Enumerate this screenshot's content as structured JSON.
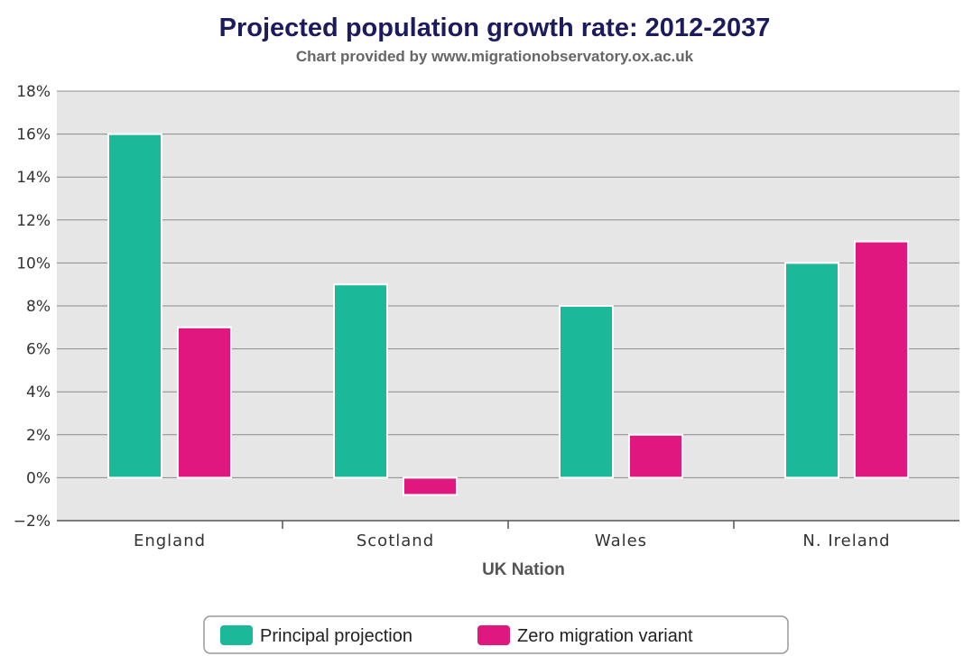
{
  "chart_data": {
    "type": "bar",
    "title": "Projected population growth rate: 2012-2037",
    "subtitle": "Chart provided by www.migrationobservatory.ox.ac.uk",
    "xlabel": "UK Nation",
    "ylabel": "",
    "categories": [
      "England",
      "Scotland",
      "Wales",
      "N. Ireland"
    ],
    "series": [
      {
        "name": "Principal projection",
        "color": "#1bb99a",
        "values": [
          16,
          9,
          8,
          10
        ]
      },
      {
        "name": "Zero migration variant",
        "color": "#e0177f",
        "values": [
          7,
          -0.8,
          2,
          11
        ]
      }
    ],
    "ylim": [
      -2,
      18
    ],
    "yticks": [
      "−2%",
      "0%",
      "2%",
      "4%",
      "6%",
      "8%",
      "10%",
      "12%",
      "14%",
      "16%",
      "18%"
    ],
    "grid": true,
    "legend": "bottom-center"
  }
}
